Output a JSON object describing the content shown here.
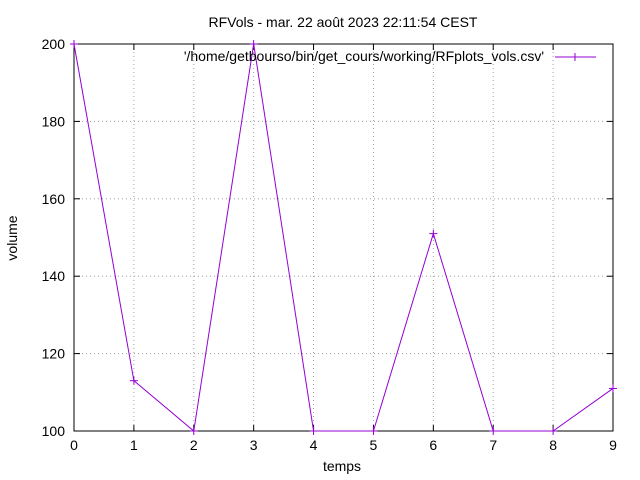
{
  "chart_data": {
    "type": "line",
    "title": "RFVols - mar. 22 août 2023 22:11:54 CEST",
    "xlabel": "temps",
    "ylabel": "volume",
    "xlim": [
      0,
      9
    ],
    "ylim": [
      100,
      200
    ],
    "xticks": [
      "0",
      "1",
      "2",
      "3",
      "4",
      "5",
      "6",
      "7",
      "8",
      "9"
    ],
    "yticks": [
      "100",
      "120",
      "140",
      "160",
      "180",
      "200"
    ],
    "grid": true,
    "legend_position": "top-right",
    "series": [
      {
        "name": "'/home/getbourso/bin/get_cours/working/RFplots_vols.csv'",
        "color": "#9400d3",
        "marker": "plus",
        "x": [
          0,
          1,
          2,
          3,
          4,
          5,
          6,
          7,
          8,
          9
        ],
        "y": [
          200,
          113,
          100,
          200,
          100,
          100,
          151,
          100,
          100,
          111
        ]
      }
    ]
  }
}
